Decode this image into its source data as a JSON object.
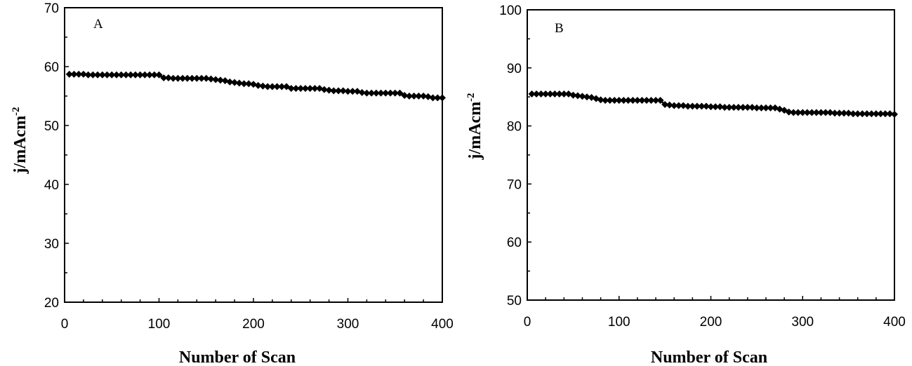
{
  "chart_data": [
    {
      "type": "line",
      "panel_label": "A",
      "xlabel": "Number of Scan",
      "ylabel": "j/mAcm",
      "ylabel_sup": "-2",
      "xlim": [
        0,
        400
      ],
      "ylim": [
        20,
        70
      ],
      "xticks": [
        0,
        100,
        200,
        300,
        400
      ],
      "yticks": [
        20,
        30,
        40,
        50,
        60,
        70
      ],
      "grid": false,
      "legend": "none",
      "marker": "diamond",
      "color": "#000000",
      "series": [
        {
          "x": [
            5,
            10,
            15,
            20,
            25,
            30,
            35,
            40,
            45,
            50,
            55,
            60,
            65,
            70,
            75,
            80,
            85,
            90,
            95,
            100,
            105,
            110,
            115,
            120,
            125,
            130,
            135,
            140,
            145,
            150,
            155,
            160,
            165,
            170,
            175,
            180,
            185,
            190,
            195,
            200,
            205,
            210,
            215,
            220,
            225,
            230,
            235,
            240,
            245,
            250,
            255,
            260,
            265,
            270,
            275,
            280,
            285,
            290,
            295,
            300,
            305,
            310,
            315,
            320,
            325,
            330,
            335,
            340,
            345,
            350,
            355,
            360,
            365,
            370,
            375,
            380,
            385,
            390,
            395,
            400
          ],
          "y": [
            58.7,
            58.7,
            58.7,
            58.7,
            58.6,
            58.6,
            58.6,
            58.6,
            58.6,
            58.6,
            58.6,
            58.6,
            58.6,
            58.6,
            58.6,
            58.6,
            58.6,
            58.6,
            58.6,
            58.6,
            58.1,
            58.1,
            58.0,
            58.0,
            58.0,
            58.0,
            58.0,
            58.0,
            58.0,
            58.0,
            57.9,
            57.8,
            57.7,
            57.6,
            57.4,
            57.3,
            57.2,
            57.1,
            57.1,
            57.0,
            56.8,
            56.7,
            56.6,
            56.6,
            56.6,
            56.6,
            56.6,
            56.3,
            56.3,
            56.3,
            56.3,
            56.3,
            56.3,
            56.3,
            56.1,
            56.0,
            55.9,
            55.9,
            55.9,
            55.8,
            55.8,
            55.8,
            55.6,
            55.5,
            55.5,
            55.5,
            55.5,
            55.5,
            55.5,
            55.5,
            55.5,
            55.1,
            55.0,
            55.0,
            55.0,
            55.0,
            54.9,
            54.7,
            54.7,
            54.7
          ]
        }
      ]
    },
    {
      "type": "line",
      "panel_label": "B",
      "xlabel": "Number of Scan",
      "ylabel": "j/mAcm",
      "ylabel_sup": "-2",
      "xlim": [
        0,
        400
      ],
      "ylim": [
        50,
        100
      ],
      "xticks": [
        0,
        100,
        200,
        300,
        400
      ],
      "yticks": [
        50,
        60,
        70,
        80,
        90,
        100
      ],
      "grid": false,
      "legend": "none",
      "marker": "diamond",
      "color": "#000000",
      "series": [
        {
          "x": [
            5,
            10,
            15,
            20,
            25,
            30,
            35,
            40,
            45,
            50,
            55,
            60,
            65,
            70,
            75,
            80,
            85,
            90,
            95,
            100,
            105,
            110,
            115,
            120,
            125,
            130,
            135,
            140,
            145,
            150,
            155,
            160,
            165,
            170,
            175,
            180,
            185,
            190,
            195,
            200,
            205,
            210,
            215,
            220,
            225,
            230,
            235,
            240,
            245,
            250,
            255,
            260,
            265,
            270,
            275,
            280,
            285,
            290,
            295,
            300,
            305,
            310,
            315,
            320,
            325,
            330,
            335,
            340,
            345,
            350,
            355,
            360,
            365,
            370,
            375,
            380,
            385,
            390,
            395,
            400
          ],
          "y": [
            85.5,
            85.5,
            85.5,
            85.5,
            85.5,
            85.5,
            85.5,
            85.5,
            85.5,
            85.3,
            85.2,
            85.1,
            85.0,
            84.9,
            84.7,
            84.5,
            84.4,
            84.4,
            84.4,
            84.4,
            84.4,
            84.4,
            84.4,
            84.4,
            84.4,
            84.4,
            84.4,
            84.4,
            84.4,
            83.7,
            83.6,
            83.5,
            83.5,
            83.5,
            83.4,
            83.4,
            83.4,
            83.4,
            83.4,
            83.3,
            83.3,
            83.3,
            83.2,
            83.2,
            83.2,
            83.2,
            83.2,
            83.2,
            83.2,
            83.1,
            83.1,
            83.1,
            83.1,
            83.1,
            82.9,
            82.7,
            82.4,
            82.3,
            82.3,
            82.3,
            82.3,
            82.3,
            82.3,
            82.3,
            82.3,
            82.3,
            82.2,
            82.2,
            82.2,
            82.2,
            82.1,
            82.1,
            82.1,
            82.1,
            82.1,
            82.1,
            82.1,
            82.1,
            82.1,
            82.0
          ]
        }
      ]
    }
  ]
}
